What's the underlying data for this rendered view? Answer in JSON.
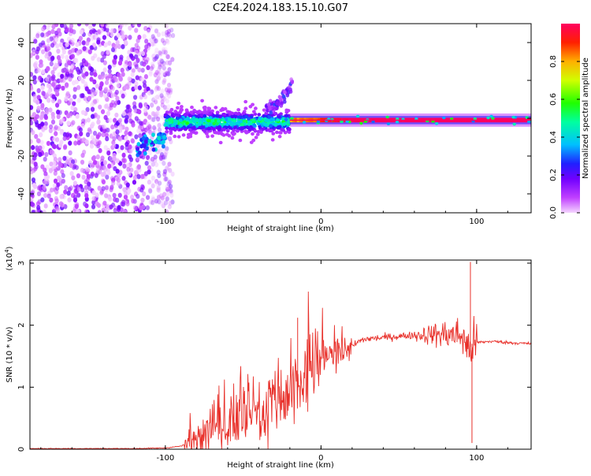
{
  "title": "C2E4.2024.183.15.10.G07",
  "chart_data": [
    {
      "type": "heatmap",
      "title": "C2E4.2024.183.15.10.G07",
      "xlabel": "Height of straight line (km)",
      "ylabel": "Frequency (Hz)",
      "xlim": [
        -187,
        135
      ],
      "ylim": [
        -50,
        50
      ],
      "x_ticks": [
        -100,
        0,
        100
      ],
      "y_ticks": [
        -40,
        -20,
        0,
        20,
        40
      ],
      "x_tick_labels": [
        "-100",
        "0",
        "100"
      ],
      "y_tick_labels": [
        "-40",
        "-20",
        "0",
        "20",
        "40"
      ],
      "grid": false,
      "colorbar": {
        "label": "Normalized spectral amplitude",
        "range": [
          0,
          1
        ],
        "ticks": [
          0.0,
          0.2,
          0.4,
          0.6,
          0.8
        ],
        "tick_labels": [
          "0.0",
          "0.2",
          "0.4",
          "0.6",
          "0.8"
        ]
      },
      "regions": [
        {
          "x": [
            -187,
            -95
          ],
          "freq": [
            -50,
            50
          ],
          "amplitude": [
            0.0,
            0.2
          ],
          "pattern": "scattered noise"
        },
        {
          "x": [
            -118,
            -100
          ],
          "freq": [
            -16,
            -8
          ],
          "amplitude": [
            0.2,
            0.45
          ],
          "pattern": "rising signal"
        },
        {
          "x": [
            -100,
            -20
          ],
          "freq": [
            -10,
            5
          ],
          "amplitude": [
            0.2,
            0.6
          ],
          "pattern": "broad band near 0 Hz"
        },
        {
          "x": [
            -35,
            -18
          ],
          "freq": [
            5,
            20
          ],
          "amplitude": [
            0.05,
            0.3
          ],
          "pattern": "rising arm"
        },
        {
          "x": [
            -20,
            135
          ],
          "freq": [
            -3,
            1
          ],
          "amplitude": [
            0.7,
            1.0
          ],
          "pattern": "narrow line near -1 Hz"
        }
      ]
    },
    {
      "type": "line",
      "xlabel": "Height of straight line (km)",
      "ylabel": "SNR (10 * v/v)",
      "y_multiplier": "(x10",
      "y_multiplier_exp": "4",
      "y_multiplier_close": ")",
      "xlim": [
        -187,
        135
      ],
      "ylim": [
        0,
        3.05
      ],
      "x_ticks": [
        -100,
        0,
        100
      ],
      "y_ticks": [
        0,
        1,
        2,
        3
      ],
      "x_tick_labels": [
        "-100",
        "0",
        "100"
      ],
      "y_tick_labels": [
        "0",
        "1",
        "2",
        "3"
      ],
      "grid": false,
      "color": "#e8302a",
      "series": [
        {
          "x": [
            -187,
            -150,
            -120,
            -100,
            -90,
            -85,
            -80,
            -70,
            -60,
            -50,
            -40,
            -30,
            -20,
            -15,
            -10,
            -5,
            0,
            10,
            20,
            25,
            30,
            40,
            50,
            60,
            70,
            80,
            90,
            95,
            97,
            100,
            110,
            120,
            135
          ],
          "values": [
            0.01,
            0.01,
            0.01,
            0.02,
            0.05,
            0.1,
            0.2,
            0.3,
            0.4,
            0.45,
            0.55,
            0.65,
            0.8,
            0.95,
            1.15,
            1.3,
            1.4,
            1.55,
            1.65,
            1.75,
            1.78,
            1.8,
            1.82,
            1.84,
            1.85,
            1.85,
            1.84,
            1.6,
            1.7,
            1.72,
            1.74,
            1.72,
            1.7
          ]
        }
      ],
      "annotations": [
        {
          "x": -15,
          "value": 2.12,
          "text": ""
        },
        {
          "x": 96,
          "value": 3.02,
          "text": ""
        },
        {
          "x": 97,
          "value": 0.1,
          "text": ""
        }
      ]
    }
  ]
}
